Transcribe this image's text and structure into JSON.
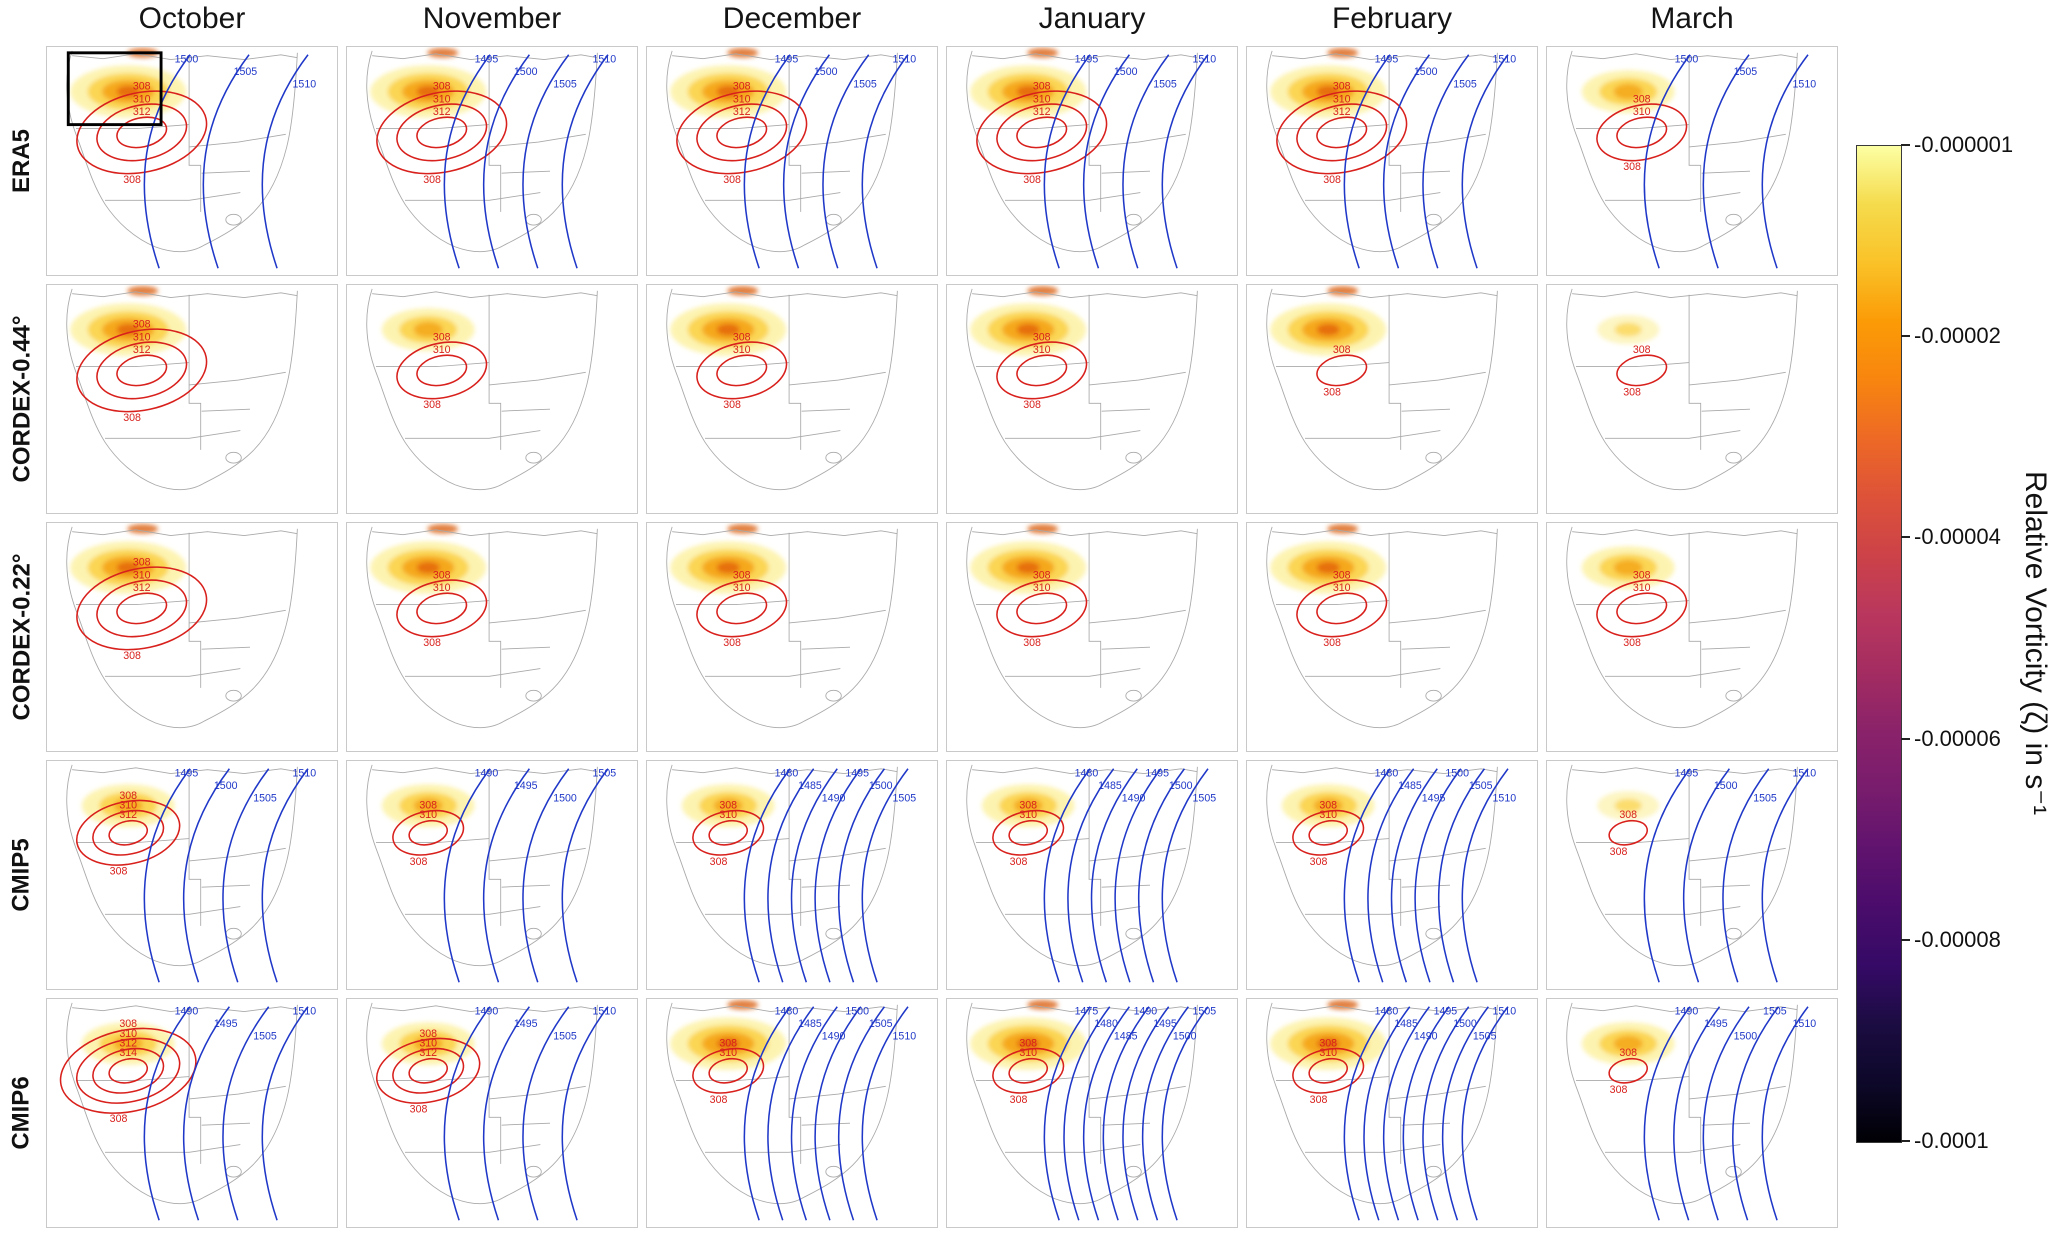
{
  "figure": {
    "columns": [
      "October",
      "November",
      "December",
      "January",
      "February",
      "March"
    ],
    "rows": [
      "ERA5",
      "CORDEX-0.44°",
      "CORDEX-0.22°",
      "CMIP5",
      "CMIP6"
    ]
  },
  "colorbar": {
    "label": "Relative Vorticity (ζ) in s⁻¹",
    "ticks": [
      {
        "label": "-0.000001",
        "pos": 0.0
      },
      {
        "label": "-0.00002",
        "pos": 0.192
      },
      {
        "label": "-0.00004",
        "pos": 0.394
      },
      {
        "label": "-0.00006",
        "pos": 0.596
      },
      {
        "label": "-0.00008",
        "pos": 0.798
      },
      {
        "label": "-0.0001",
        "pos": 1.0
      }
    ],
    "colors": [
      "#fcffa4",
      "#f5db4c",
      "#fac228",
      "#fb9b06",
      "#f8850f",
      "#ed6925",
      "#dd5239",
      "#cc4248",
      "#b9375e",
      "#a32c61",
      "#8a226a",
      "#781c6d",
      "#60136e",
      "#4a0c6b",
      "#350a66",
      "#1b0c41",
      "#0d0829",
      "#000004"
    ]
  },
  "chart_data": {
    "type": "heatmap",
    "description": "5×6 grid of southern-Africa map panels (rows: datasets, columns: months). Yellow–orange shading shows negative relative vorticity; red contour lines are labeled 308–314; blue contour lines are labeled 1475–1510.",
    "columns": [
      "October",
      "November",
      "December",
      "January",
      "February",
      "March"
    ],
    "red_contour_color": "#d8201c",
    "blue_contour_color": "#2038c8",
    "rows": [
      {
        "name": "ERA5",
        "cells": [
          {
            "red": [
              312,
              310,
              308
            ],
            "blue": [
              1500,
              1505,
              1510
            ],
            "shade": "strong",
            "box": true
          },
          {
            "red": [
              312,
              310,
              308
            ],
            "blue": [
              1495,
              1500,
              1505,
              1510
            ],
            "shade": "strong"
          },
          {
            "red": [
              312,
              310,
              308
            ],
            "blue": [
              1495,
              1500,
              1505,
              1510
            ],
            "shade": "strong"
          },
          {
            "red": [
              312,
              310,
              308
            ],
            "blue": [
              1495,
              1500,
              1505,
              1510
            ],
            "shade": "strong"
          },
          {
            "red": [
              312,
              310,
              308
            ],
            "blue": [
              1495,
              1500,
              1505,
              1510
            ],
            "shade": "strong"
          },
          {
            "red": [
              310,
              308
            ],
            "blue": [
              1500,
              1505,
              1510
            ],
            "shade": "moderate"
          }
        ]
      },
      {
        "name": "CORDEX-0.44°",
        "cells": [
          {
            "red": [
              312,
              310,
              308
            ],
            "blue": [],
            "shade": "strong"
          },
          {
            "red": [
              310,
              308
            ],
            "blue": [],
            "shade": "moderate"
          },
          {
            "red": [
              310,
              308
            ],
            "blue": [],
            "shade": "strong"
          },
          {
            "red": [
              310,
              308
            ],
            "blue": [],
            "shade": "strong"
          },
          {
            "red": [
              308
            ],
            "blue": [],
            "shade": "strong"
          },
          {
            "red": [
              308
            ],
            "blue": [],
            "shade": "light"
          }
        ]
      },
      {
        "name": "CORDEX-0.22°",
        "cells": [
          {
            "red": [
              312,
              310,
              308
            ],
            "blue": [],
            "shade": "strong"
          },
          {
            "red": [
              310,
              308
            ],
            "blue": [],
            "shade": "strong"
          },
          {
            "red": [
              310,
              308
            ],
            "blue": [],
            "shade": "strong"
          },
          {
            "red": [
              310,
              308
            ],
            "blue": [],
            "shade": "strong"
          },
          {
            "red": [
              310,
              308
            ],
            "blue": [],
            "shade": "strong"
          },
          {
            "red": [
              310,
              308
            ],
            "blue": [],
            "shade": "moderate"
          }
        ]
      },
      {
        "name": "CMIP5",
        "cells": [
          {
            "red": [
              312,
              310,
              308
            ],
            "blue": [
              1495,
              1500,
              1505,
              1510
            ],
            "shade": "moderate"
          },
          {
            "red": [
              310,
              308
            ],
            "blue": [
              1490,
              1495,
              1500,
              1505
            ],
            "shade": "moderate"
          },
          {
            "red": [
              310,
              308
            ],
            "blue": [
              1480,
              1485,
              1490,
              1495,
              1500,
              1505
            ],
            "shade": "moderate"
          },
          {
            "red": [
              310,
              308
            ],
            "blue": [
              1480,
              1485,
              1490,
              1495,
              1500,
              1505
            ],
            "shade": "moderate"
          },
          {
            "red": [
              310,
              308
            ],
            "blue": [
              1480,
              1485,
              1495,
              1500,
              1505,
              1510
            ],
            "shade": "moderate"
          },
          {
            "red": [
              308
            ],
            "blue": [
              1495,
              1500,
              1505,
              1510
            ],
            "shade": "light"
          }
        ]
      },
      {
        "name": "CMIP6",
        "cells": [
          {
            "red": [
              314,
              312,
              310,
              308
            ],
            "blue": [
              1490,
              1495,
              1505,
              1510
            ],
            "shade": "moderate"
          },
          {
            "red": [
              312,
              310,
              308
            ],
            "blue": [
              1490,
              1495,
              1505,
              1510
            ],
            "shade": "moderate"
          },
          {
            "red": [
              310,
              308
            ],
            "blue": [
              1480,
              1485,
              1490,
              1500,
              1505,
              1510
            ],
            "shade": "strong"
          },
          {
            "red": [
              310,
              308
            ],
            "blue": [
              1475,
              1480,
              1485,
              1490,
              1495,
              1500,
              1505
            ],
            "shade": "strong"
          },
          {
            "red": [
              310,
              308
            ],
            "blue": [
              1480,
              1485,
              1490,
              1495,
              1500,
              1505,
              1510
            ],
            "shade": "strong"
          },
          {
            "red": [
              308
            ],
            "blue": [
              1490,
              1495,
              1500,
              1505,
              1510
            ],
            "shade": "moderate"
          }
        ]
      }
    ]
  }
}
